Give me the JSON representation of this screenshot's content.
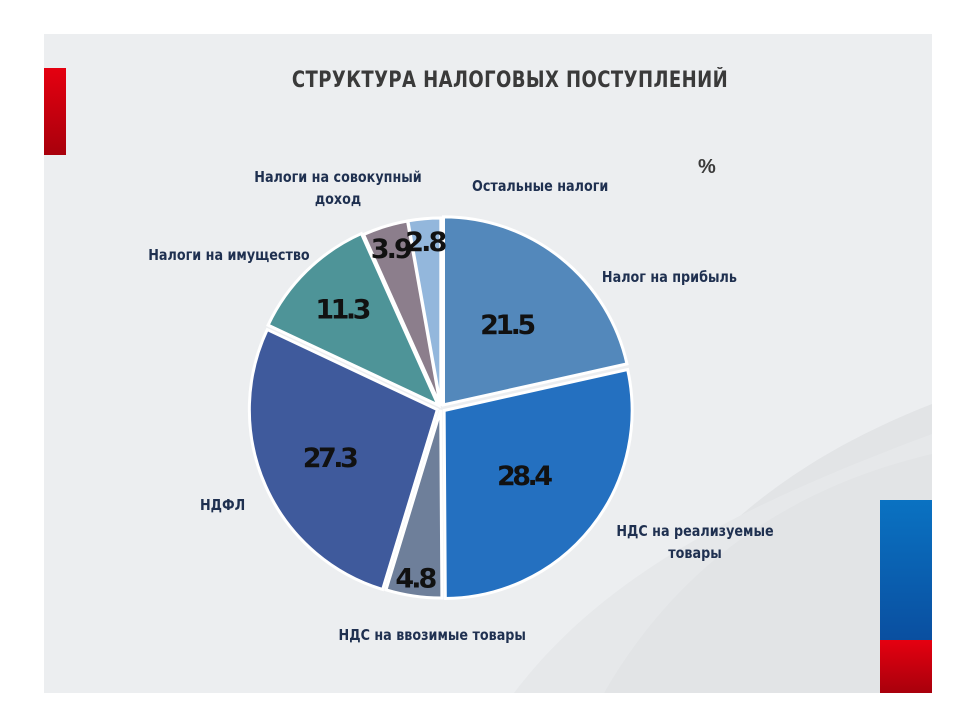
{
  "title": "СТРУКТУРА НАЛОГОВЫХ  ПОСТУПЛЕНИЙ",
  "unit": "%",
  "colors": {
    "slide_bg": "#eceef0",
    "accent_red": "#e50010",
    "accent_blue": "#0a72c2",
    "label_text": "#1f3050"
  },
  "chart_data": {
    "type": "pie",
    "title": "СТРУКТУРА НАЛОГОВЫХ  ПОСТУПЛЕНИЙ",
    "unit": "%",
    "start_angle": "12 o'clock, clockwise",
    "categories": [
      "Налог на прибыль",
      "НДС на реализуемые товары",
      "НДС на ввозимые товары",
      "НДФЛ",
      "Налоги на имущество",
      "Налоги на совокупный доход",
      "Остальные налоги"
    ],
    "values": [
      21.5,
      28.4,
      4.8,
      27.3,
      11.3,
      3.9,
      2.8
    ],
    "value_labels": [
      "21.5",
      "28.4",
      "4.8",
      "27.3",
      "11.3",
      "3.9",
      "2.8"
    ],
    "slice_colors": [
      "#5388bb",
      "#2470c0",
      "#6e7f9a",
      "#3f5a9c",
      "#4e9498",
      "#8c7e8c",
      "#93b7dc"
    ],
    "legend": "none (category labels placed around pie)"
  }
}
